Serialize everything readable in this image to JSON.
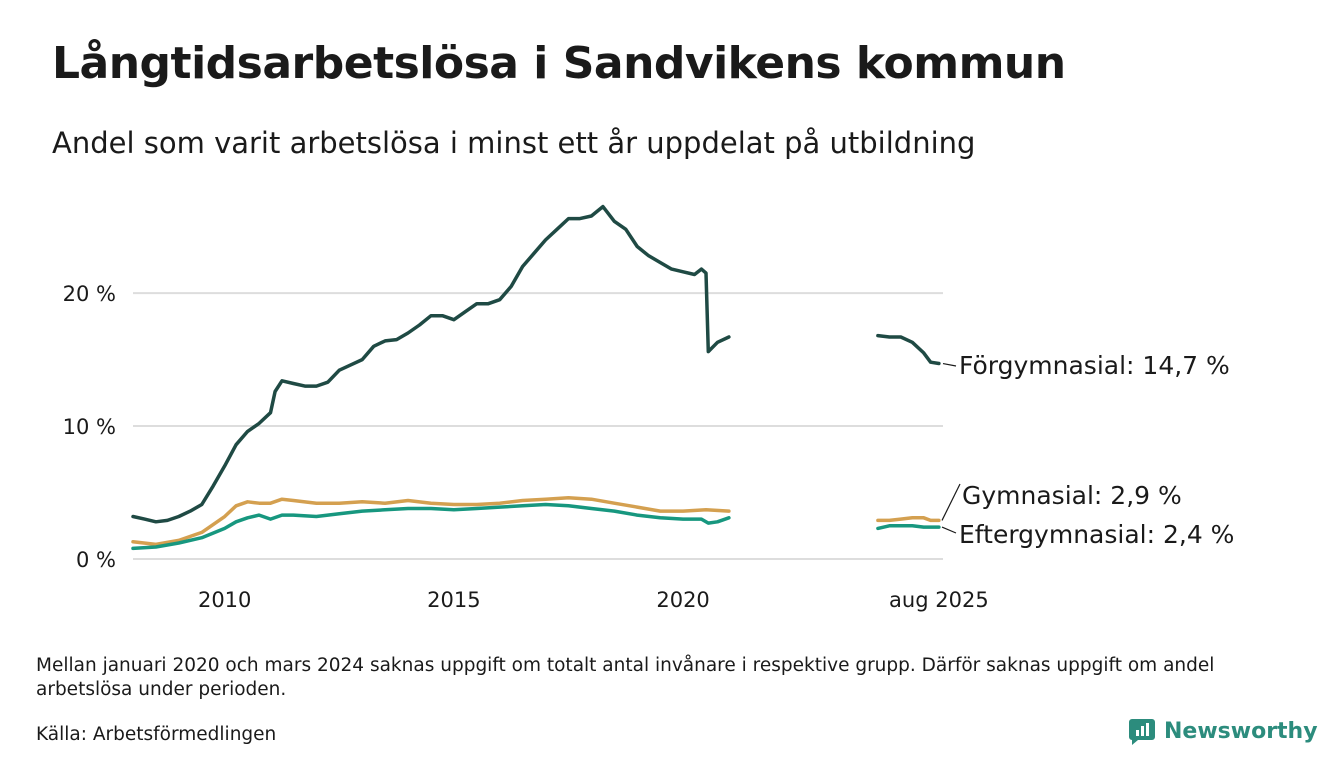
{
  "title": "Långtidsarbetslösa i Sandvikens kommun",
  "subtitle": "Andel som varit arbetslösa i minst ett år uppdelat på utbildning",
  "note": "Mellan januari 2020 och mars 2024 saknas uppgift om totalt antal invånare i respektive grupp. Därför saknas uppgift om andel arbetslösa under perioden.",
  "source": "Källa: Arbetsförmedlingen",
  "brand": "Newsworthy",
  "colors": {
    "forgymnasial": "#1f4a44",
    "gymnasial": "#d4a050",
    "eftergymnasial": "#17977f",
    "grid": "#dddddd",
    "brand": "#2c8c7d"
  },
  "chart_data": {
    "type": "line",
    "x_unit": "year (decimal)",
    "y_unit": "%",
    "xlim": [
      2008.0,
      2025.67
    ],
    "ylim": [
      0,
      27
    ],
    "x_ticks": [
      {
        "value": 2010,
        "label": "2010"
      },
      {
        "value": 2015,
        "label": "2015"
      },
      {
        "value": 2020,
        "label": "2020"
      },
      {
        "value": 2025.58,
        "label": "aug 2025"
      }
    ],
    "y_ticks": [
      {
        "value": 0,
        "label": "0 %"
      },
      {
        "value": 10,
        "label": "10 %"
      },
      {
        "value": 20,
        "label": "20 %"
      }
    ],
    "grid": "horizontal",
    "series": [
      {
        "name": "Förgymnasial",
        "end_label": "Förgymnasial: 14,7 %",
        "color": "#1f4a44",
        "segments": [
          [
            [
              2008.0,
              3.2
            ],
            [
              2008.25,
              3.0
            ],
            [
              2008.5,
              2.8
            ],
            [
              2008.75,
              2.9
            ],
            [
              2009.0,
              3.2
            ],
            [
              2009.25,
              3.6
            ],
            [
              2009.5,
              4.1
            ],
            [
              2009.75,
              5.5
            ],
            [
              2010.0,
              7.0
            ],
            [
              2010.25,
              8.6
            ],
            [
              2010.5,
              9.6
            ],
            [
              2010.75,
              10.2
            ],
            [
              2011.0,
              11.0
            ],
            [
              2011.1,
              12.6
            ],
            [
              2011.25,
              13.4
            ],
            [
              2011.5,
              13.2
            ],
            [
              2011.75,
              13.0
            ],
            [
              2012.0,
              13.0
            ],
            [
              2012.25,
              13.3
            ],
            [
              2012.5,
              14.2
            ],
            [
              2012.75,
              14.6
            ],
            [
              2013.0,
              15.0
            ],
            [
              2013.25,
              16.0
            ],
            [
              2013.5,
              16.4
            ],
            [
              2013.75,
              16.5
            ],
            [
              2014.0,
              17.0
            ],
            [
              2014.25,
              17.6
            ],
            [
              2014.5,
              18.3
            ],
            [
              2014.75,
              18.3
            ],
            [
              2015.0,
              18.0
            ],
            [
              2015.25,
              18.6
            ],
            [
              2015.5,
              19.2
            ],
            [
              2015.75,
              19.2
            ],
            [
              2016.0,
              19.5
            ],
            [
              2016.25,
              20.5
            ],
            [
              2016.5,
              22.0
            ],
            [
              2016.75,
              23.0
            ],
            [
              2017.0,
              24.0
            ],
            [
              2017.25,
              24.8
            ],
            [
              2017.5,
              25.6
            ],
            [
              2017.75,
              25.6
            ],
            [
              2018.0,
              25.8
            ],
            [
              2018.25,
              26.5
            ],
            [
              2018.5,
              25.4
            ],
            [
              2018.75,
              24.8
            ],
            [
              2019.0,
              23.5
            ],
            [
              2019.25,
              22.8
            ],
            [
              2019.5,
              22.3
            ],
            [
              2019.75,
              21.8
            ],
            [
              2020.0,
              21.6
            ],
            [
              2020.25,
              21.4
            ],
            [
              2020.4,
              21.8
            ],
            [
              2020.5,
              21.5
            ],
            [
              2020.55,
              15.6
            ],
            [
              2020.75,
              16.3
            ],
            [
              2021.0,
              16.7
            ]
          ],
          [
            [
              2024.25,
              16.8
            ],
            [
              2024.5,
              16.7
            ],
            [
              2024.75,
              16.7
            ],
            [
              2025.0,
              16.3
            ],
            [
              2025.25,
              15.5
            ],
            [
              2025.4,
              14.8
            ],
            [
              2025.58,
              14.7
            ]
          ]
        ]
      },
      {
        "name": "Gymnasial",
        "end_label": "Gymnasial:  2,9 %",
        "color": "#d4a050",
        "segments": [
          [
            [
              2008.0,
              1.3
            ],
            [
              2008.5,
              1.1
            ],
            [
              2009.0,
              1.4
            ],
            [
              2009.5,
              2.0
            ],
            [
              2010.0,
              3.2
            ],
            [
              2010.25,
              4.0
            ],
            [
              2010.5,
              4.3
            ],
            [
              2010.75,
              4.2
            ],
            [
              2011.0,
              4.2
            ],
            [
              2011.25,
              4.5
            ],
            [
              2011.5,
              4.4
            ],
            [
              2012.0,
              4.2
            ],
            [
              2012.5,
              4.2
            ],
            [
              2013.0,
              4.3
            ],
            [
              2013.5,
              4.2
            ],
            [
              2014.0,
              4.4
            ],
            [
              2014.5,
              4.2
            ],
            [
              2015.0,
              4.1
            ],
            [
              2015.5,
              4.1
            ],
            [
              2016.0,
              4.2
            ],
            [
              2016.5,
              4.4
            ],
            [
              2017.0,
              4.5
            ],
            [
              2017.5,
              4.6
            ],
            [
              2018.0,
              4.5
            ],
            [
              2018.5,
              4.2
            ],
            [
              2019.0,
              3.9
            ],
            [
              2019.5,
              3.6
            ],
            [
              2020.0,
              3.6
            ],
            [
              2020.5,
              3.7
            ],
            [
              2021.0,
              3.6
            ]
          ],
          [
            [
              2024.25,
              2.9
            ],
            [
              2024.5,
              2.9
            ],
            [
              2024.75,
              3.0
            ],
            [
              2025.0,
              3.1
            ],
            [
              2025.25,
              3.1
            ],
            [
              2025.4,
              2.9
            ],
            [
              2025.58,
              2.9
            ]
          ]
        ]
      },
      {
        "name": "Eftergymnasial",
        "end_label": "Eftergymnasial:  2,4 %",
        "color": "#17977f",
        "segments": [
          [
            [
              2008.0,
              0.8
            ],
            [
              2008.5,
              0.9
            ],
            [
              2009.0,
              1.2
            ],
            [
              2009.5,
              1.6
            ],
            [
              2010.0,
              2.3
            ],
            [
              2010.25,
              2.8
            ],
            [
              2010.5,
              3.1
            ],
            [
              2010.75,
              3.3
            ],
            [
              2011.0,
              3.0
            ],
            [
              2011.25,
              3.3
            ],
            [
              2011.5,
              3.3
            ],
            [
              2012.0,
              3.2
            ],
            [
              2012.5,
              3.4
            ],
            [
              2013.0,
              3.6
            ],
            [
              2013.5,
              3.7
            ],
            [
              2014.0,
              3.8
            ],
            [
              2014.5,
              3.8
            ],
            [
              2015.0,
              3.7
            ],
            [
              2015.5,
              3.8
            ],
            [
              2016.0,
              3.9
            ],
            [
              2016.5,
              4.0
            ],
            [
              2017.0,
              4.1
            ],
            [
              2017.5,
              4.0
            ],
            [
              2018.0,
              3.8
            ],
            [
              2018.5,
              3.6
            ],
            [
              2019.0,
              3.3
            ],
            [
              2019.5,
              3.1
            ],
            [
              2020.0,
              3.0
            ],
            [
              2020.4,
              3.0
            ],
            [
              2020.55,
              2.7
            ],
            [
              2020.75,
              2.8
            ],
            [
              2021.0,
              3.1
            ]
          ],
          [
            [
              2024.25,
              2.3
            ],
            [
              2024.5,
              2.5
            ],
            [
              2024.75,
              2.5
            ],
            [
              2025.0,
              2.5
            ],
            [
              2025.25,
              2.4
            ],
            [
              2025.58,
              2.4
            ]
          ]
        ]
      }
    ]
  }
}
